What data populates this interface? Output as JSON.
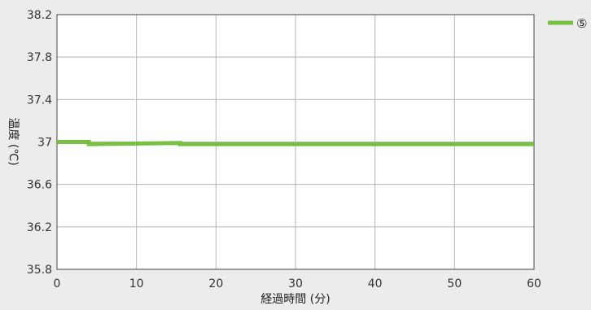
{
  "chart_data": {
    "type": "line",
    "title": "",
    "xlabel": "経過時間 (分)",
    "ylabel": "温度 (℃)",
    "xlim": [
      0,
      60
    ],
    "ylim": [
      35.8,
      38.2
    ],
    "x_ticks": [
      "0",
      "10",
      "20",
      "30",
      "40",
      "50",
      "60"
    ],
    "y_ticks": [
      "38.2",
      "37.8",
      "37.4",
      "37",
      "36.6",
      "36.2",
      "35.8"
    ],
    "grid": true,
    "legend_position": "top-right",
    "series": [
      {
        "name": "⑤",
        "color": "#77c043",
        "x": [
          0,
          4,
          4,
          15.5,
          15.5,
          20,
          20,
          60
        ],
        "y": [
          37.0,
          37.0,
          36.98,
          36.99,
          36.98,
          36.98,
          36.98,
          36.98
        ]
      }
    ]
  }
}
